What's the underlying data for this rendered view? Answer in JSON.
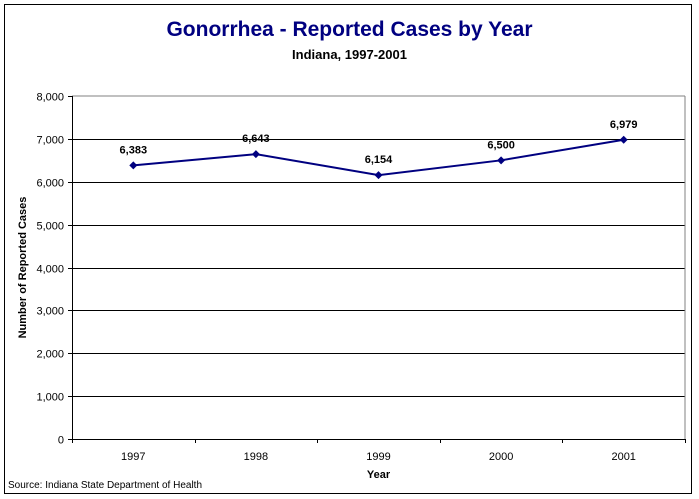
{
  "chart_data": {
    "type": "line",
    "title": "Gonorrhea - Reported Cases by Year",
    "subtitle": "Indiana, 1997-2001",
    "xlabel": "Year",
    "ylabel": "Number of Reported Cases",
    "categories": [
      "1997",
      "1998",
      "1999",
      "2000",
      "2001"
    ],
    "series": [
      {
        "name": "Reported Cases",
        "values": [
          6383,
          6643,
          6154,
          6500,
          6979
        ],
        "color": "#000080"
      }
    ],
    "data_labels": [
      "6,383",
      "6,643",
      "6,154",
      "6,500",
      "6,979"
    ],
    "ylim": [
      0,
      8000
    ],
    "yticks": [
      0,
      1000,
      2000,
      3000,
      4000,
      5000,
      6000,
      7000,
      8000
    ],
    "ytick_labels": [
      "0",
      "1,000",
      "2,000",
      "3,000",
      "4,000",
      "5,000",
      "6,000",
      "7,000",
      "8,000"
    ],
    "grid": true,
    "legend": "none",
    "source": "Source: Indiana State Department of Health"
  }
}
